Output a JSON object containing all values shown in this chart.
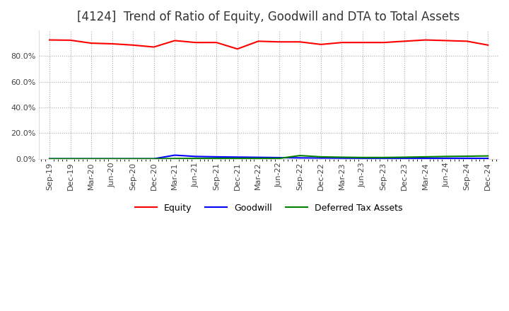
{
  "title": "[4124]  Trend of Ratio of Equity, Goodwill and DTA to Total Assets",
  "x_labels": [
    "Sep-19",
    "Dec-19",
    "Mar-20",
    "Jun-20",
    "Sep-20",
    "Dec-20",
    "Mar-21",
    "Jun-21",
    "Sep-21",
    "Dec-21",
    "Mar-22",
    "Jun-22",
    "Sep-22",
    "Dec-22",
    "Mar-23",
    "Jun-23",
    "Sep-23",
    "Dec-23",
    "Mar-24",
    "Jun-24",
    "Sep-24",
    "Dec-24"
  ],
  "equity": [
    92.5,
    92.3,
    90.0,
    89.5,
    88.5,
    87.0,
    92.0,
    90.5,
    90.5,
    85.5,
    91.5,
    91.0,
    91.0,
    89.0,
    90.5,
    90.5,
    90.5,
    91.5,
    92.5,
    92.0,
    91.5,
    88.5
  ],
  "goodwill": [
    0.0,
    0.0,
    0.0,
    0.0,
    0.0,
    0.0,
    2.8,
    1.8,
    1.5,
    1.3,
    1.1,
    0.9,
    0.7,
    0.6,
    0.5,
    0.4,
    0.4,
    0.4,
    0.4,
    0.4,
    0.4,
    0.3
  ],
  "dta": [
    0.0,
    0.0,
    0.0,
    0.0,
    0.0,
    0.0,
    0.2,
    0.3,
    0.3,
    0.3,
    0.3,
    0.3,
    2.5,
    1.5,
    1.2,
    1.0,
    1.0,
    1.2,
    1.5,
    1.8,
    2.0,
    2.2
  ],
  "equity_color": "#ff0000",
  "goodwill_color": "#0000ff",
  "dta_color": "#008000",
  "ylim": [
    0,
    100
  ],
  "yticks": [
    0,
    20,
    40,
    60,
    80
  ],
  "background_color": "#ffffff",
  "grid_color": "#aaaaaa",
  "title_fontsize": 12,
  "legend_labels": [
    "Equity",
    "Goodwill",
    "Deferred Tax Assets"
  ]
}
